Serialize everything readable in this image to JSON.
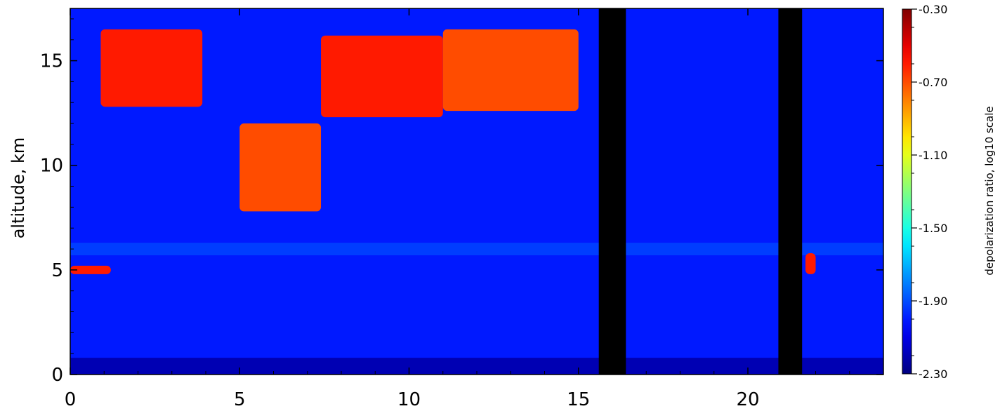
{
  "chart_data": {
    "type": "heatmap",
    "title": "",
    "xlabel": "",
    "ylabel": "altitude, km",
    "xlim": [
      0,
      24
    ],
    "ylim": [
      0,
      17.5
    ],
    "x_ticks": [
      "0",
      "5",
      "10",
      "15",
      "20"
    ],
    "y_ticks": [
      "0",
      "5",
      "10",
      "15"
    ],
    "colorbar": {
      "label": "depolarization ratio, log10 scale",
      "range": [
        -2.3,
        -0.3
      ],
      "ticks": [
        "-0.30",
        "-0.70",
        "-1.10",
        "-1.50",
        "-1.90",
        "-2.30"
      ],
      "colormap": "jet"
    },
    "no_data_intervals": [
      [
        15.6,
        16.4
      ],
      [
        20.9,
        21.6
      ]
    ],
    "high_depol_cloud_layers": [
      {
        "x": [
          0.9,
          3.9
        ],
        "y": [
          12.8,
          16.5
        ],
        "value": -0.6
      },
      {
        "x": [
          5.0,
          7.4
        ],
        "y": [
          7.8,
          12.0
        ],
        "value": -0.7
      },
      {
        "x": [
          7.4,
          11.0
        ],
        "y": [
          12.3,
          16.2
        ],
        "value": -0.6
      },
      {
        "x": [
          11.0,
          15.0
        ],
        "y": [
          12.6,
          16.5
        ],
        "value": -0.7
      },
      {
        "x": [
          0.0,
          1.2
        ],
        "y": [
          4.8,
          5.2
        ],
        "value": -0.6
      },
      {
        "x": [
          21.7,
          22.0
        ],
        "y": [
          4.8,
          5.8
        ],
        "value": -0.6
      }
    ],
    "background_depolarization": -2.0
  },
  "colors": {
    "no_data": "#000000",
    "frame": "#000000",
    "background": "#ffffff"
  }
}
